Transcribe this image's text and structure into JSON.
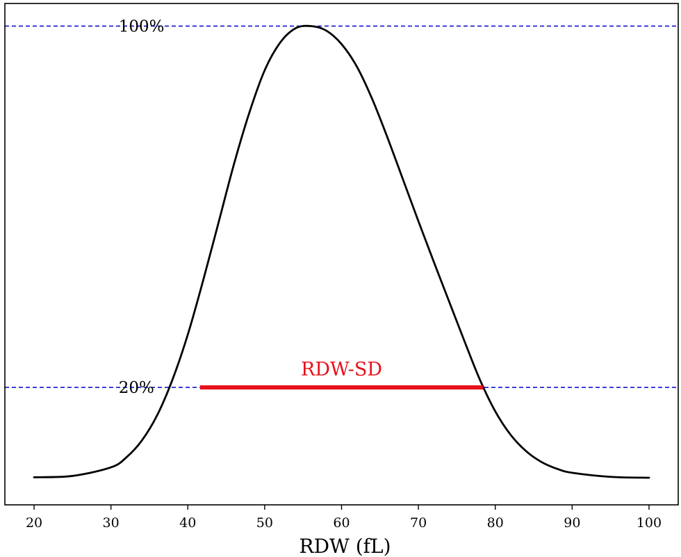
{
  "chart_data": {
    "type": "line",
    "xlabel": "RDW (fL)",
    "ylabel": "",
    "xlim": [
      16.2,
      103.8
    ],
    "ylim": [
      -0.06,
      1.05
    ],
    "xticks": [
      20,
      30,
      40,
      50,
      60,
      70,
      80,
      90,
      100
    ],
    "xtick_labels": [
      "20",
      "30",
      "40",
      "50",
      "60",
      "70",
      "80",
      "90",
      "100"
    ],
    "yticks_visible": false,
    "grid": false,
    "legend": "none",
    "series": [
      {
        "color": "#000000",
        "x": [
          20,
          25,
          30,
          32,
          34,
          36,
          38,
          40,
          42,
          44,
          46,
          48,
          50,
          52,
          54,
          56,
          58,
          60,
          62,
          64,
          66,
          68,
          70,
          72,
          74,
          76,
          78,
          80,
          82,
          84,
          86,
          88,
          90,
          95,
          100
        ],
        "y": [
          0.001,
          0.004,
          0.023,
          0.045,
          0.082,
          0.138,
          0.217,
          0.317,
          0.437,
          0.565,
          0.694,
          0.808,
          0.902,
          0.963,
          0.995,
          1.0,
          0.99,
          0.96,
          0.91,
          0.838,
          0.752,
          0.66,
          0.568,
          0.478,
          0.39,
          0.302,
          0.217,
          0.147,
          0.095,
          0.059,
          0.035,
          0.02,
          0.011,
          0.002,
          0.0
        ]
      }
    ],
    "reference_lines": [
      {
        "label": "100%",
        "y": 1.0,
        "color": "#0000cc",
        "style": "dashed"
      },
      {
        "label": "20%",
        "y": 0.2,
        "color": "#0000cc",
        "style": "dashed"
      }
    ],
    "annotation": {
      "label": "RDW-SD",
      "x_start": 41.6,
      "x_end": 78.4,
      "y": 0.2,
      "color": "#e8101a"
    }
  }
}
